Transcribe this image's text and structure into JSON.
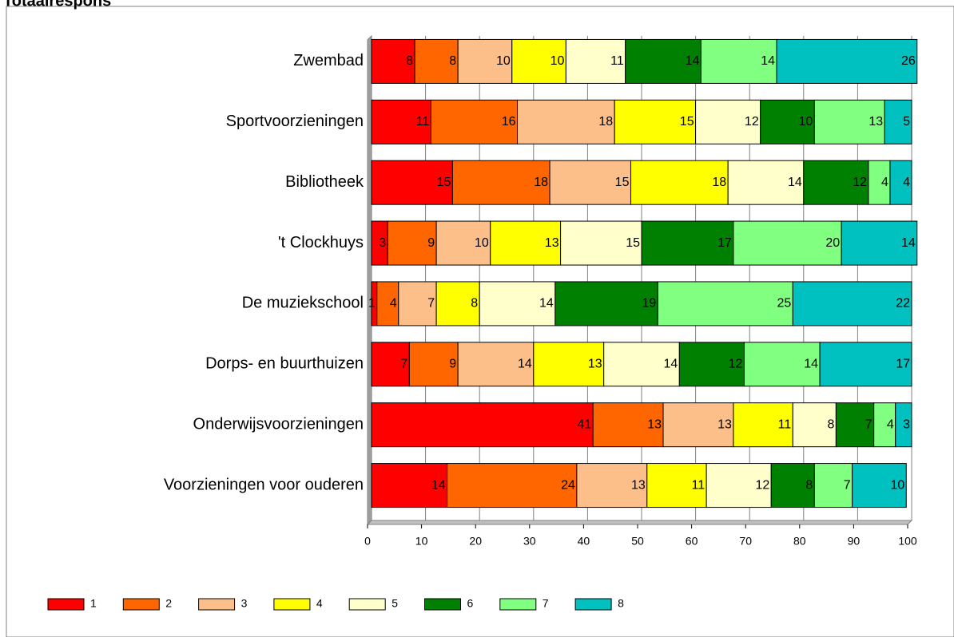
{
  "chart_data": {
    "type": "stacked_barh",
    "title": "Totaalrespons",
    "categories": [
      "Zwembad",
      "Sportvoorzieningen",
      "Bibliotheek",
      "'t Clockhuys",
      "De muziekschool",
      "Dorps- en buurthuizen",
      "Onderwijsvoorzieningen",
      "Voorzieningen voor ouderen"
    ],
    "series": [
      {
        "name": "1",
        "color": "#ff0000",
        "values": [
          8,
          11,
          15,
          3,
          1,
          7,
          41,
          14
        ]
      },
      {
        "name": "2",
        "color": "#ff6600",
        "values": [
          8,
          16,
          18,
          9,
          4,
          9,
          13,
          24
        ]
      },
      {
        "name": "3",
        "color": "#fdbf8a",
        "values": [
          10,
          18,
          15,
          10,
          7,
          14,
          13,
          13
        ]
      },
      {
        "name": "4",
        "color": "#ffff00",
        "values": [
          10,
          15,
          18,
          13,
          8,
          13,
          11,
          11
        ]
      },
      {
        "name": "5",
        "color": "#ffffcc",
        "values": [
          11,
          12,
          14,
          15,
          14,
          14,
          8,
          12
        ]
      },
      {
        "name": "6",
        "color": "#008000",
        "values": [
          14,
          10,
          12,
          17,
          19,
          12,
          7,
          8
        ]
      },
      {
        "name": "7",
        "color": "#80ff80",
        "values": [
          14,
          13,
          4,
          20,
          25,
          14,
          4,
          7
        ]
      },
      {
        "name": "8",
        "color": "#00c0c0",
        "values": [
          26,
          5,
          4,
          14,
          22,
          17,
          3,
          10
        ]
      }
    ],
    "xlim": [
      0,
      100
    ],
    "xticks": [
      0,
      10,
      20,
      30,
      40,
      50,
      60,
      70,
      80,
      90,
      100
    ],
    "grid": true,
    "legend": "bottom"
  }
}
